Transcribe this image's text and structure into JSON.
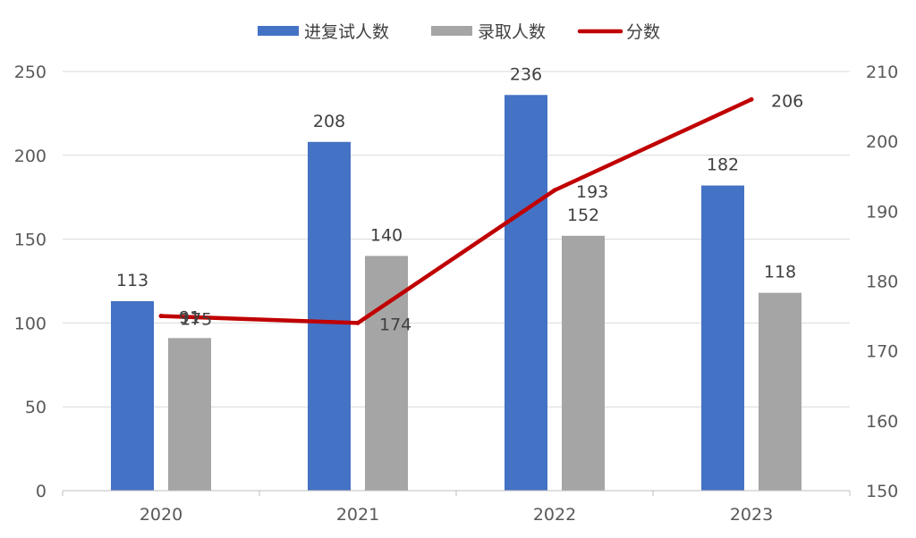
{
  "chart_data": {
    "type": "bar",
    "categories": [
      "2020",
      "2021",
      "2022",
      "2023"
    ],
    "series": [
      {
        "name": "进复试人数",
        "type": "bar",
        "axis": "left",
        "color": "#4472c4",
        "values": [
          113,
          208,
          236,
          182
        ],
        "labels": [
          "113",
          "208",
          "236",
          "182"
        ]
      },
      {
        "name": "录取人数",
        "type": "bar",
        "axis": "left",
        "color": "#a5a5a5",
        "values": [
          91,
          140,
          152,
          118
        ],
        "labels": [
          "91",
          "140",
          "152",
          "118"
        ]
      },
      {
        "name": "分数",
        "type": "line",
        "axis": "right",
        "color": "#c00000",
        "values": [
          175,
          174,
          193,
          206
        ],
        "labels": [
          "175",
          "174",
          "193",
          "206"
        ]
      }
    ],
    "y_left": {
      "min": 0,
      "max": 250,
      "step": 50,
      "ticks": [
        "0",
        "50",
        "100",
        "150",
        "200",
        "250"
      ]
    },
    "y_right": {
      "min": 150,
      "max": 210,
      "step": 10,
      "ticks": [
        "150",
        "160",
        "170",
        "180",
        "190",
        "200",
        "210"
      ]
    },
    "grid": true,
    "legend": "top-center"
  }
}
